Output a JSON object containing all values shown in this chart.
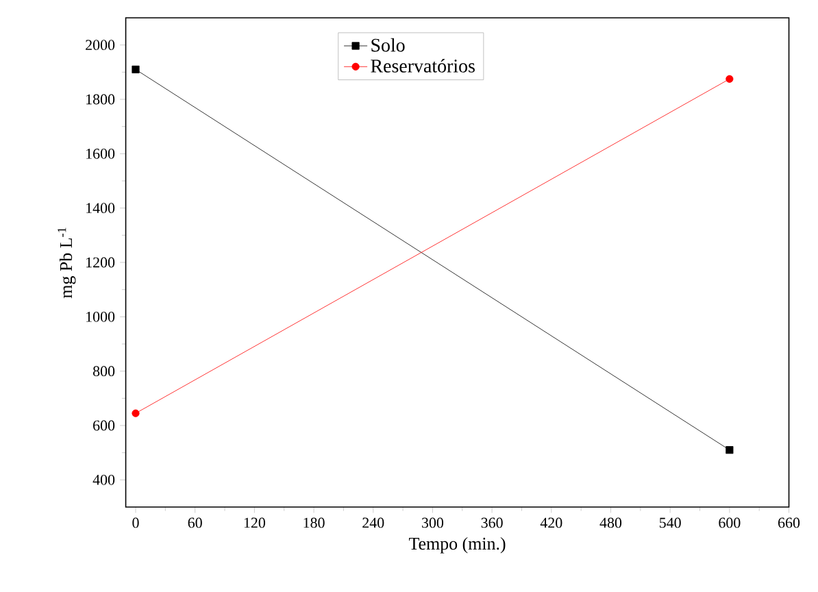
{
  "chart_data": {
    "type": "line",
    "xlabel": "Tempo (min.)",
    "ylabel": "mg Pb L$^{-1}$",
    "x": [
      0,
      600
    ],
    "series": [
      {
        "name": "Solo",
        "color": "#000000",
        "marker": "square",
        "values": [
          1910,
          510
        ]
      },
      {
        "name": "Reservatórios",
        "color": "#ff0000",
        "marker": "circle",
        "values": [
          645,
          1875
        ]
      }
    ],
    "xlim": [
      -10,
      660
    ],
    "xticks": [
      0,
      60,
      120,
      180,
      240,
      300,
      360,
      420,
      480,
      540,
      600,
      660
    ],
    "ylim": [
      300,
      2100
    ],
    "yticks": [
      400,
      600,
      800,
      1000,
      1200,
      1400,
      1600,
      1800,
      2000
    ],
    "legend": "top",
    "line_style": "solid"
  }
}
